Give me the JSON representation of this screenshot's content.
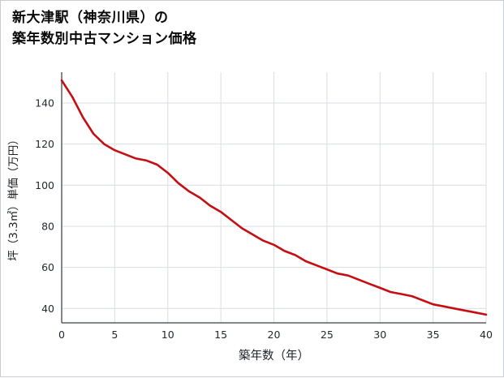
{
  "title": {
    "line1": "新大津駅（神奈川県）の",
    "line2": "築年数別中古マンション価格"
  },
  "chart_data": {
    "type": "line",
    "title": "新大津駅（神奈川県）の築年数別中古マンション価格",
    "xlabel": "築年数（年）",
    "ylabel": "坪（3.3㎡）単価（万円）",
    "x": [
      0,
      1,
      2,
      3,
      4,
      5,
      6,
      7,
      8,
      9,
      10,
      11,
      12,
      13,
      14,
      15,
      16,
      17,
      18,
      19,
      20,
      21,
      22,
      23,
      24,
      25,
      26,
      27,
      28,
      29,
      30,
      31,
      32,
      33,
      34,
      35,
      36,
      37,
      38,
      39,
      40
    ],
    "y": [
      151,
      143,
      133,
      125,
      120,
      117,
      115,
      113,
      112,
      110,
      106,
      101,
      97,
      94,
      90,
      87,
      83,
      79,
      76,
      73,
      71,
      68,
      66,
      63,
      61,
      59,
      57,
      56,
      54,
      52,
      50,
      48,
      47,
      46,
      44,
      42,
      41,
      40,
      39,
      38,
      37
    ],
    "xticks": [
      0,
      5,
      10,
      15,
      20,
      25,
      30,
      35,
      40
    ],
    "yticks": [
      40,
      60,
      80,
      100,
      120,
      140
    ],
    "xlim": [
      0,
      40
    ],
    "ylim": [
      33,
      155
    ],
    "grid": true,
    "legend_position": "none"
  },
  "style": {
    "line_color": "#c40e12",
    "grid_color": "#d9dde4",
    "axis_color": "#5a5f66",
    "tick_color": "#24292f",
    "label_color": "#1b1f24",
    "background": "#ffffff",
    "border_color": "#c9ccd1"
  }
}
